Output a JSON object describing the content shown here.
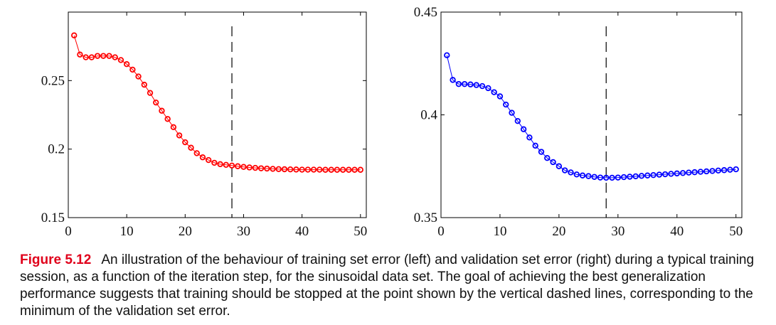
{
  "chart_data": [
    {
      "type": "line",
      "title": "",
      "xlabel": "",
      "ylabel": "",
      "xlim": [
        0,
        51
      ],
      "ylim": [
        0.15,
        0.3
      ],
      "xticks": [
        0,
        10,
        20,
        30,
        40,
        50
      ],
      "yticks": [
        0.15,
        0.2,
        0.25
      ],
      "xtick_labels": [
        "0",
        "10",
        "20",
        "30",
        "40",
        "50"
      ],
      "ytick_labels": [
        "0.15",
        "0.2",
        "0.25"
      ],
      "grid": false,
      "vline_x": 28,
      "series": [
        {
          "color": "#ff0000",
          "marker": "circle",
          "x": [
            1,
            2,
            3,
            4,
            5,
            6,
            7,
            8,
            9,
            10,
            11,
            12,
            13,
            14,
            15,
            16,
            17,
            18,
            19,
            20,
            21,
            22,
            23,
            24,
            25,
            26,
            27,
            28,
            29,
            30,
            31,
            32,
            33,
            34,
            35,
            36,
            37,
            38,
            39,
            40,
            41,
            42,
            43,
            44,
            45,
            46,
            47,
            48,
            49,
            50
          ],
          "values": [
            0.283,
            0.269,
            0.267,
            0.267,
            0.268,
            0.268,
            0.268,
            0.267,
            0.265,
            0.262,
            0.258,
            0.253,
            0.247,
            0.241,
            0.234,
            0.228,
            0.222,
            0.216,
            0.21,
            0.205,
            0.201,
            0.197,
            0.194,
            0.192,
            0.19,
            0.189,
            0.1885,
            0.188,
            0.1875,
            0.187,
            0.1866,
            0.1863,
            0.186,
            0.1858,
            0.1856,
            0.1854,
            0.1853,
            0.1852,
            0.1851,
            0.185,
            0.185,
            0.185,
            0.185,
            0.1849,
            0.1849,
            0.1849,
            0.1849,
            0.1849,
            0.1849,
            0.1849
          ]
        }
      ]
    },
    {
      "type": "line",
      "title": "",
      "xlabel": "",
      "ylabel": "",
      "xlim": [
        0,
        51
      ],
      "ylim": [
        0.35,
        0.45
      ],
      "xticks": [
        0,
        10,
        20,
        30,
        40,
        50
      ],
      "yticks": [
        0.35,
        0.4,
        0.45
      ],
      "xtick_labels": [
        "0",
        "10",
        "20",
        "30",
        "40",
        "50"
      ],
      "ytick_labels": [
        "0.35",
        "0.4",
        "0.45"
      ],
      "grid": false,
      "vline_x": 28,
      "series": [
        {
          "color": "#0000ff",
          "marker": "circle",
          "x": [
            1,
            2,
            3,
            4,
            5,
            6,
            7,
            8,
            9,
            10,
            11,
            12,
            13,
            14,
            15,
            16,
            17,
            18,
            19,
            20,
            21,
            22,
            23,
            24,
            25,
            26,
            27,
            28,
            29,
            30,
            31,
            32,
            33,
            34,
            35,
            36,
            37,
            38,
            39,
            40,
            41,
            42,
            43,
            44,
            45,
            46,
            47,
            48,
            49,
            50
          ],
          "values": [
            0.429,
            0.417,
            0.415,
            0.415,
            0.4148,
            0.4145,
            0.414,
            0.413,
            0.411,
            0.409,
            0.405,
            0.401,
            0.397,
            0.393,
            0.389,
            0.385,
            0.382,
            0.379,
            0.377,
            0.375,
            0.373,
            0.372,
            0.371,
            0.3705,
            0.3702,
            0.3698,
            0.3695,
            0.3694,
            0.3694,
            0.3695,
            0.3697,
            0.3699,
            0.3701,
            0.3703,
            0.3705,
            0.3707,
            0.3709,
            0.3711,
            0.3713,
            0.3715,
            0.3717,
            0.3719,
            0.3721,
            0.3723,
            0.3725,
            0.3727,
            0.3729,
            0.3731,
            0.3733,
            0.3735
          ]
        }
      ]
    }
  ],
  "caption": {
    "label": "Figure 5.12",
    "text": "An illustration of the behaviour of training set error (left) and validation set error (right) during a typical training session, as a function of the iteration step, for the sinusoidal data set. The goal of achieving the best generalization performance suggests that training should be stopped at the point shown by the vertical dashed lines, corresponding to the minimum of the validation set error."
  }
}
